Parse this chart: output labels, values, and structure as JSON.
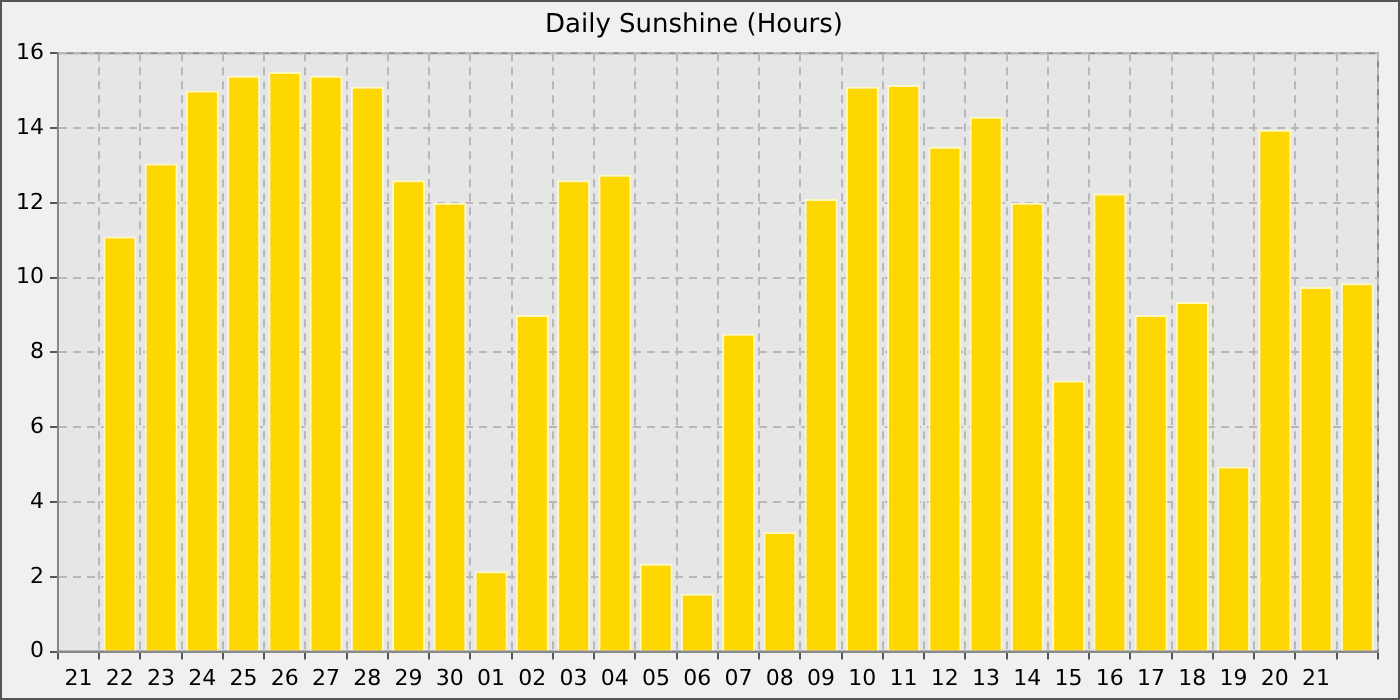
{
  "chart_data": {
    "type": "bar",
    "title": "Daily Sunshine (Hours)",
    "categories": [
      "21",
      "22",
      "23",
      "24",
      "25",
      "26",
      "27",
      "28",
      "29",
      "30",
      "01",
      "02",
      "03",
      "04",
      "05",
      "06",
      "07",
      "08",
      "09",
      "10",
      "11",
      "12",
      "13",
      "14",
      "15",
      "16",
      "17",
      "18",
      "19",
      "20",
      "21",
      null
    ],
    "values": [
      null,
      11.1,
      13.05,
      15.0,
      15.4,
      15.5,
      15.4,
      15.1,
      12.6,
      12.0,
      2.15,
      9.0,
      12.6,
      12.75,
      2.35,
      1.55,
      8.5,
      3.2,
      12.1,
      15.1,
      15.15,
      13.5,
      14.3,
      12.0,
      7.25,
      12.25,
      9.0,
      9.35,
      4.95,
      13.95,
      9.75,
      9.85
    ],
    "color": "#ffd700",
    "ylim": [
      0,
      16
    ],
    "yticks": [
      0,
      2,
      4,
      6,
      8,
      10,
      12,
      14,
      16
    ],
    "grid": true
  }
}
